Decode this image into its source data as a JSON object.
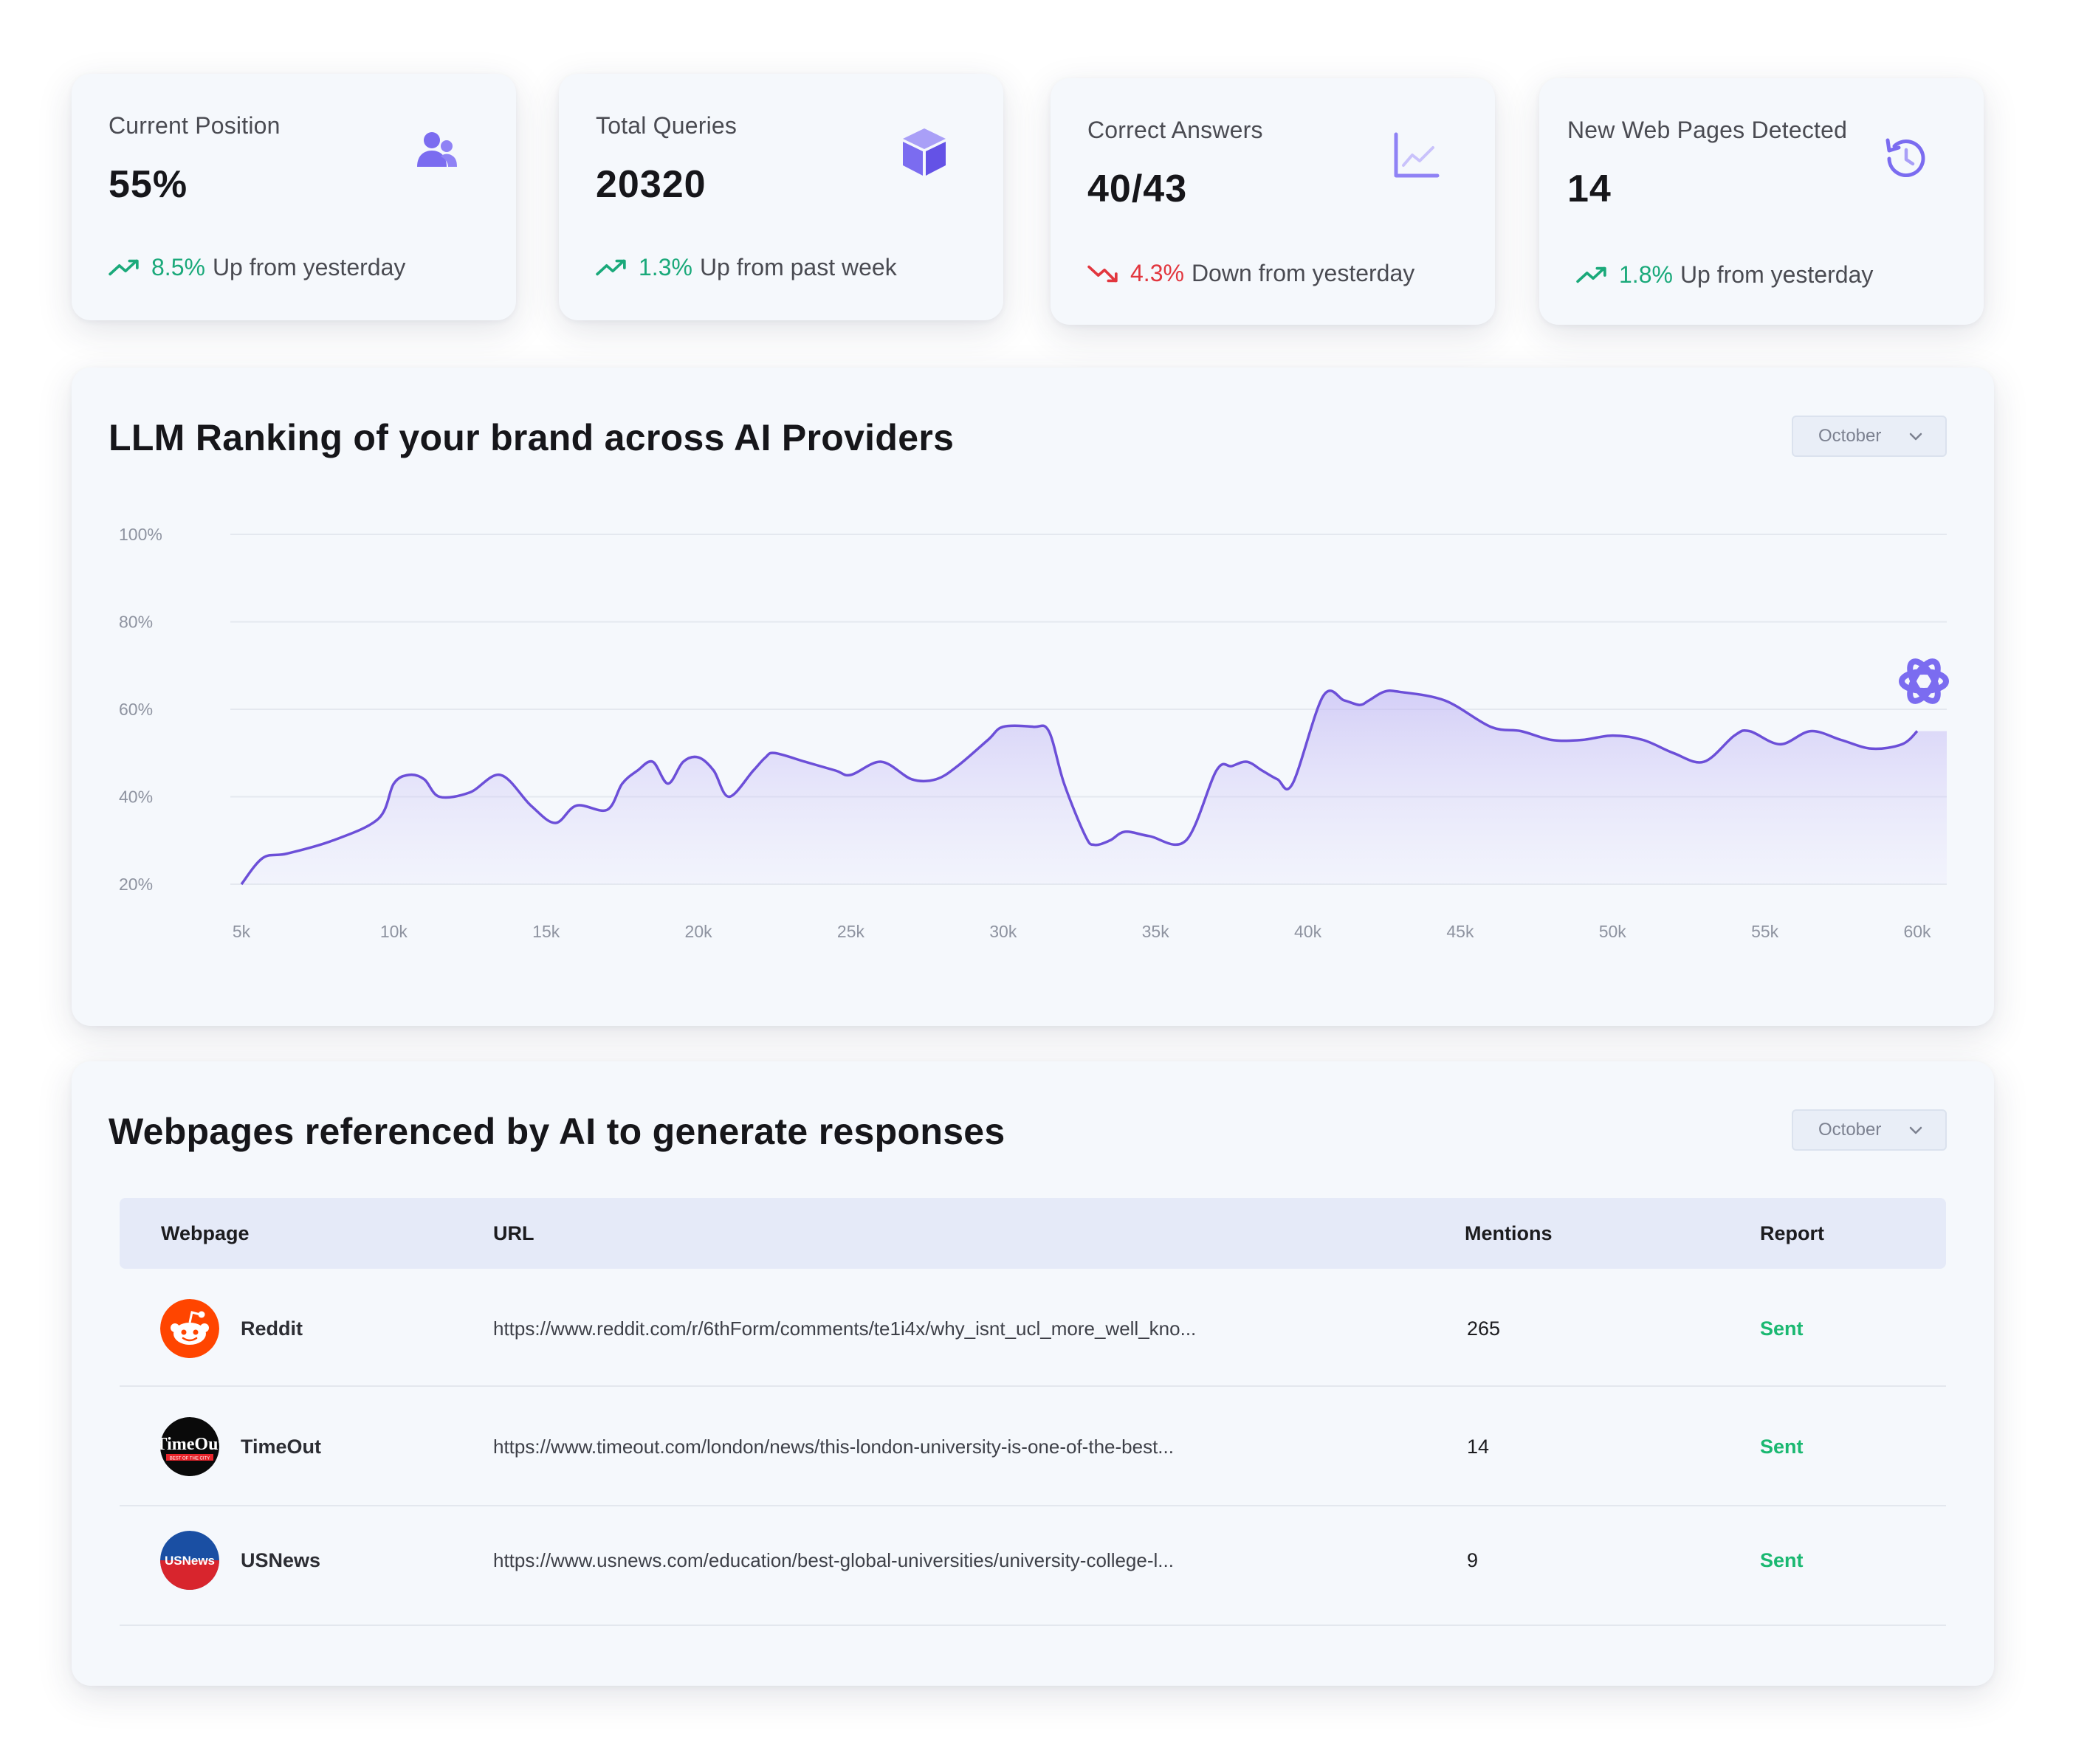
{
  "stats": [
    {
      "title": "Current Position",
      "value": "55%",
      "change": "8.5%",
      "direction": "up",
      "note": "Up from yesterday",
      "icon": "users-icon"
    },
    {
      "title": "Total Queries",
      "value": "20320",
      "change": "1.3%",
      "direction": "up",
      "note": "Up from past week",
      "icon": "cube-icon"
    },
    {
      "title": "Correct Answers",
      "value": "40/43",
      "change": "4.3%",
      "direction": "down",
      "note": "Down from yesterday",
      "icon": "line-chart-icon"
    },
    {
      "title": "New Web Pages Detected",
      "value": "14",
      "change": "1.8%",
      "direction": "up",
      "note": "Up from yesterday",
      "icon": "history-icon"
    }
  ],
  "ranking": {
    "title": "LLM Ranking of your brand across AI Providers",
    "dropdown": "October",
    "provider_icon": "openai-icon"
  },
  "chart_data": {
    "type": "area",
    "title": "LLM Ranking of your brand across AI Providers",
    "xlabel": "",
    "ylabel": "",
    "xlim": [
      5000,
      60000
    ],
    "ylim": [
      20,
      100
    ],
    "x_ticks": [
      "5k",
      "10k",
      "15k",
      "20k",
      "25k",
      "30k",
      "35k",
      "40k",
      "45k",
      "50k",
      "55k",
      "60k"
    ],
    "y_ticks": [
      "20%",
      "40%",
      "60%",
      "80%",
      "100%"
    ],
    "grid": true,
    "color": "#6c4fd8",
    "x": [
      5000,
      5700,
      6500,
      8000,
      9500,
      10000,
      10500,
      11000,
      11500,
      12500,
      13500,
      14500,
      15300,
      16000,
      17000,
      17500,
      18000,
      18500,
      19000,
      19500,
      20000,
      20500,
      21000,
      21800,
      22200,
      22500,
      23500,
      24500,
      25000,
      26000,
      27000,
      27800,
      28500,
      29500,
      30000,
      31000,
      31500,
      32000,
      32700,
      33000,
      33500,
      34000,
      34800,
      36000,
      37000,
      37500,
      38000,
      38500,
      39000,
      39500,
      40500,
      41200,
      41700,
      42000,
      42500,
      43000,
      44500,
      46000,
      47000,
      48000,
      49000,
      50000,
      51000,
      52000,
      53000,
      54000,
      54500,
      55500,
      56500,
      57500,
      58500,
      59500,
      60000
    ],
    "y": [
      20,
      26,
      27,
      30,
      35,
      43,
      45,
      44,
      40,
      41,
      45,
      38,
      34,
      38,
      37,
      43,
      46,
      48,
      43,
      48,
      49,
      46,
      40,
      46,
      49,
      50,
      48,
      46,
      45,
      48,
      44,
      44,
      47,
      53,
      56,
      56,
      55,
      43,
      31,
      29,
      30,
      32,
      31,
      30,
      46,
      47,
      48,
      46,
      44,
      43,
      63,
      62,
      61,
      62,
      64,
      64,
      62,
      56,
      55,
      53,
      53,
      54,
      53,
      50,
      48,
      54,
      55,
      52,
      55,
      53,
      51,
      52,
      55
    ]
  },
  "webpages": {
    "title": "Webpages referenced by AI to generate responses",
    "dropdown": "October",
    "columns": [
      "Webpage",
      "URL",
      "Mentions",
      "Report"
    ],
    "rows": [
      {
        "name": "Reddit",
        "url": "https://www.reddit.com/r/6thForm/comments/te1i4x/why_isnt_ucl_more_well_kno...",
        "mentions": "265",
        "report": "Sent",
        "logo": "reddit-logo"
      },
      {
        "name": "TimeOut",
        "url": "https://www.timeout.com/london/news/this-london-university-is-one-of-the-best...",
        "mentions": "14",
        "report": "Sent",
        "logo": "timeout-logo",
        "logo_text": "TimeOut",
        "logo_subtext": "BEST OF THE CITY"
      },
      {
        "name": "USNews",
        "url": "https://www.usnews.com/education/best-global-universities/university-college-l...",
        "mentions": "9",
        "report": "Sent",
        "logo": "usnews-logo",
        "logo_text": "USNews"
      }
    ]
  },
  "colors": {
    "accent": "#7b6cf0",
    "up": "#1aa97a",
    "down": "#e2363e",
    "sent": "#1ab871"
  }
}
